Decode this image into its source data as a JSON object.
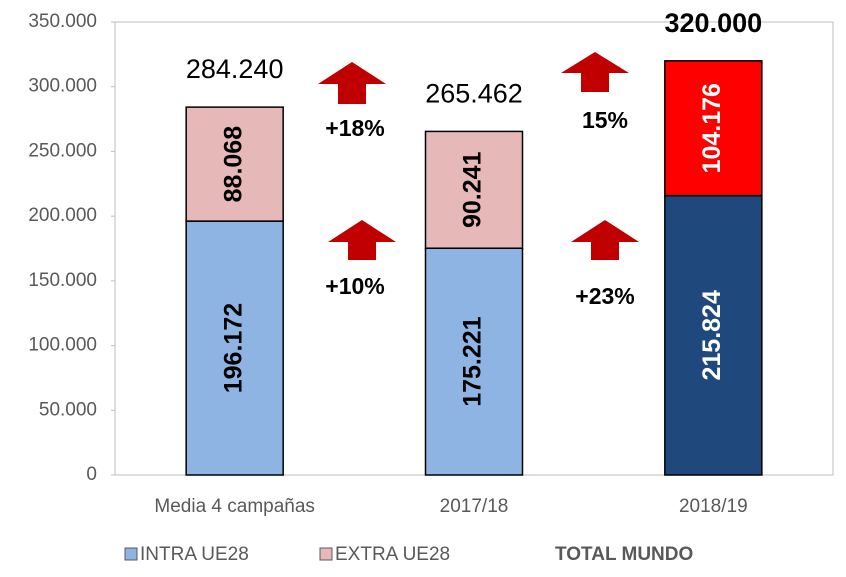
{
  "chart_data": {
    "type": "stacked_bar",
    "categories": [
      "Media 4 campañas",
      "2017/18",
      "2018/19"
    ],
    "series": [
      {
        "name": "INTRA UE28",
        "color": "#8eb4e3",
        "colors": [
          "#8eb4e3",
          "#8eb4e3",
          "#1f497d"
        ],
        "values": [
          196172,
          175221,
          215824
        ],
        "value_labels": [
          "196.172",
          "175.221",
          "215.824"
        ]
      },
      {
        "name": "EXTRA UE28",
        "color": "#e6b9b8",
        "colors": [
          "#e6b9b8",
          "#e6b9b8",
          "#ff0000"
        ],
        "values": [
          88068,
          90241,
          104176
        ],
        "value_labels": [
          "88.068",
          "90.241",
          "104.176"
        ]
      }
    ],
    "totals": {
      "name": "TOTAL MUNDO",
      "values": [
        284240,
        265462,
        320000
      ],
      "value_labels": [
        "284.240",
        "265.462",
        "320.000"
      ]
    },
    "annotations": [
      "+18%",
      "+10%",
      "15%",
      "+23%"
    ],
    "ylim": [
      0,
      350000
    ],
    "yticks": [
      0,
      {
        "value": 50000,
        "label": "50.000"
      },
      {
        "value": 100000,
        "label": "100.000"
      },
      {
        "value": 150000,
        "label": "150.000"
      },
      {
        "value": 200000,
        "label": "200.000"
      },
      {
        "value": 250000,
        "label": "250.000"
      },
      {
        "value": 300000,
        "label": "300.000"
      },
      {
        "value": 350000,
        "label": "350.000"
      }
    ],
    "grid": false
  }
}
